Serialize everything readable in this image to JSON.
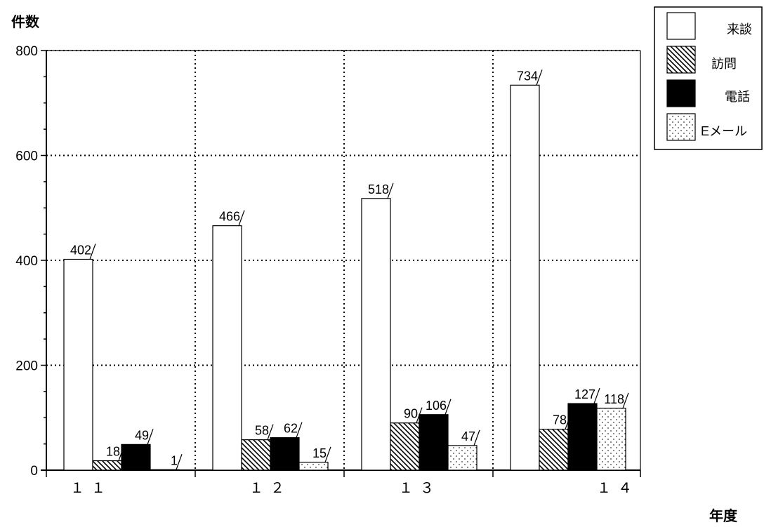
{
  "chart_data": {
    "type": "bar",
    "ylabel": "件数",
    "xlabel": "年度",
    "categories": [
      "１１",
      "１２",
      "１３",
      "１４"
    ],
    "ylim": [
      0,
      800
    ],
    "yticks": [
      0,
      200,
      400,
      600,
      800
    ],
    "grid": true,
    "legend_position": "top-right",
    "series": [
      {
        "name": "来談",
        "values": [
          402,
          466,
          518,
          734
        ],
        "fill": "white"
      },
      {
        "name": "訪問",
        "values": [
          18,
          58,
          90,
          78
        ],
        "fill": "hatch"
      },
      {
        "name": "電話",
        "values": [
          49,
          62,
          106,
          127
        ],
        "fill": "black"
      },
      {
        "name": "Eメール",
        "values": [
          1,
          15,
          47,
          118
        ],
        "fill": "dots"
      }
    ],
    "data_labels": [
      [
        "402",
        "18",
        "49",
        "1"
      ],
      [
        "466",
        "58",
        "62",
        "15"
      ],
      [
        "518",
        "90",
        "106",
        "47"
      ],
      [
        "734",
        "78",
        "127",
        "118"
      ]
    ]
  }
}
